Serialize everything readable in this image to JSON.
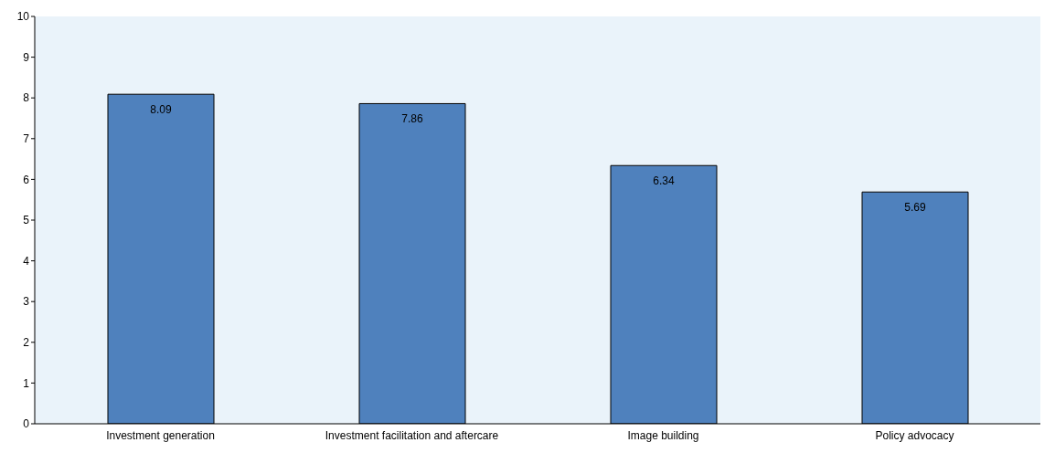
{
  "chart_data": {
    "type": "bar",
    "categories": [
      "Investment generation",
      "Investment facilitation and aftercare",
      "Image building",
      "Policy advocacy"
    ],
    "values": [
      8.09,
      7.86,
      6.34,
      5.69
    ],
    "color": "#4f81bd",
    "ylim": [
      0,
      10
    ],
    "yticks": [
      0,
      1,
      2,
      3,
      4,
      5,
      6,
      7,
      8,
      9,
      10
    ],
    "data_labels": true
  }
}
